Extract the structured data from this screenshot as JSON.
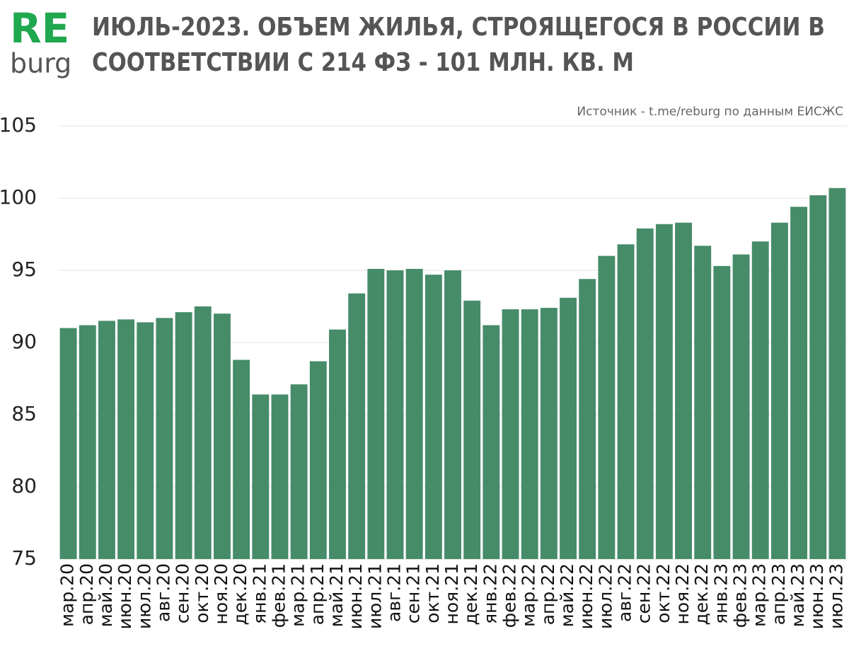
{
  "logo": {
    "top": "RE",
    "bottom": "burg"
  },
  "chart_data": {
    "type": "bar",
    "title": [
      "ИЮЛЬ-2023. ОБЪЕМ ЖИЛЬЯ, СТРОЯЩЕГОСЯ В РОССИИ В",
      "СООТВЕТСТВИИ С 214 ФЗ - 101 МЛН. КВ. М"
    ],
    "source": "Источник - t.me/reburg по данным ЕИСЖС",
    "categories": [
      "мар.20",
      "апр.20",
      "май.20",
      "июн.20",
      "июл.20",
      "авг.20",
      "сен.20",
      "окт.20",
      "ноя.20",
      "дек.20",
      "янв.21",
      "фев.21",
      "мар.21",
      "апр.21",
      "май.21",
      "июн.21",
      "июл.21",
      "авг.21",
      "сен.21",
      "окт.21",
      "ноя.21",
      "дек.21",
      "янв.22",
      "фев.22",
      "мар.22",
      "апр.22",
      "май.22",
      "июн.22",
      "июл.22",
      "авг.22",
      "сен.22",
      "окт.22",
      "ноя.22",
      "дек.22",
      "янв.23",
      "фев.23",
      "мар.23",
      "апр.23",
      "май.23",
      "июн.23",
      "июл.23"
    ],
    "values": [
      91.0,
      91.2,
      91.5,
      91.6,
      91.4,
      91.7,
      92.1,
      92.5,
      92.0,
      88.8,
      86.4,
      86.4,
      87.1,
      88.7,
      90.9,
      93.4,
      95.1,
      95.0,
      95.1,
      94.7,
      95.0,
      92.9,
      91.2,
      92.3,
      92.3,
      92.4,
      93.1,
      94.4,
      96.0,
      96.8,
      97.9,
      98.2,
      98.3,
      96.7,
      95.3,
      96.1,
      97.0,
      98.3,
      99.4,
      100.2,
      100.7
    ],
    "color": "#468c69",
    "ylim": [
      75,
      105
    ],
    "yticks": [
      75,
      80,
      85,
      90,
      95,
      100,
      105
    ],
    "grid": true
  }
}
